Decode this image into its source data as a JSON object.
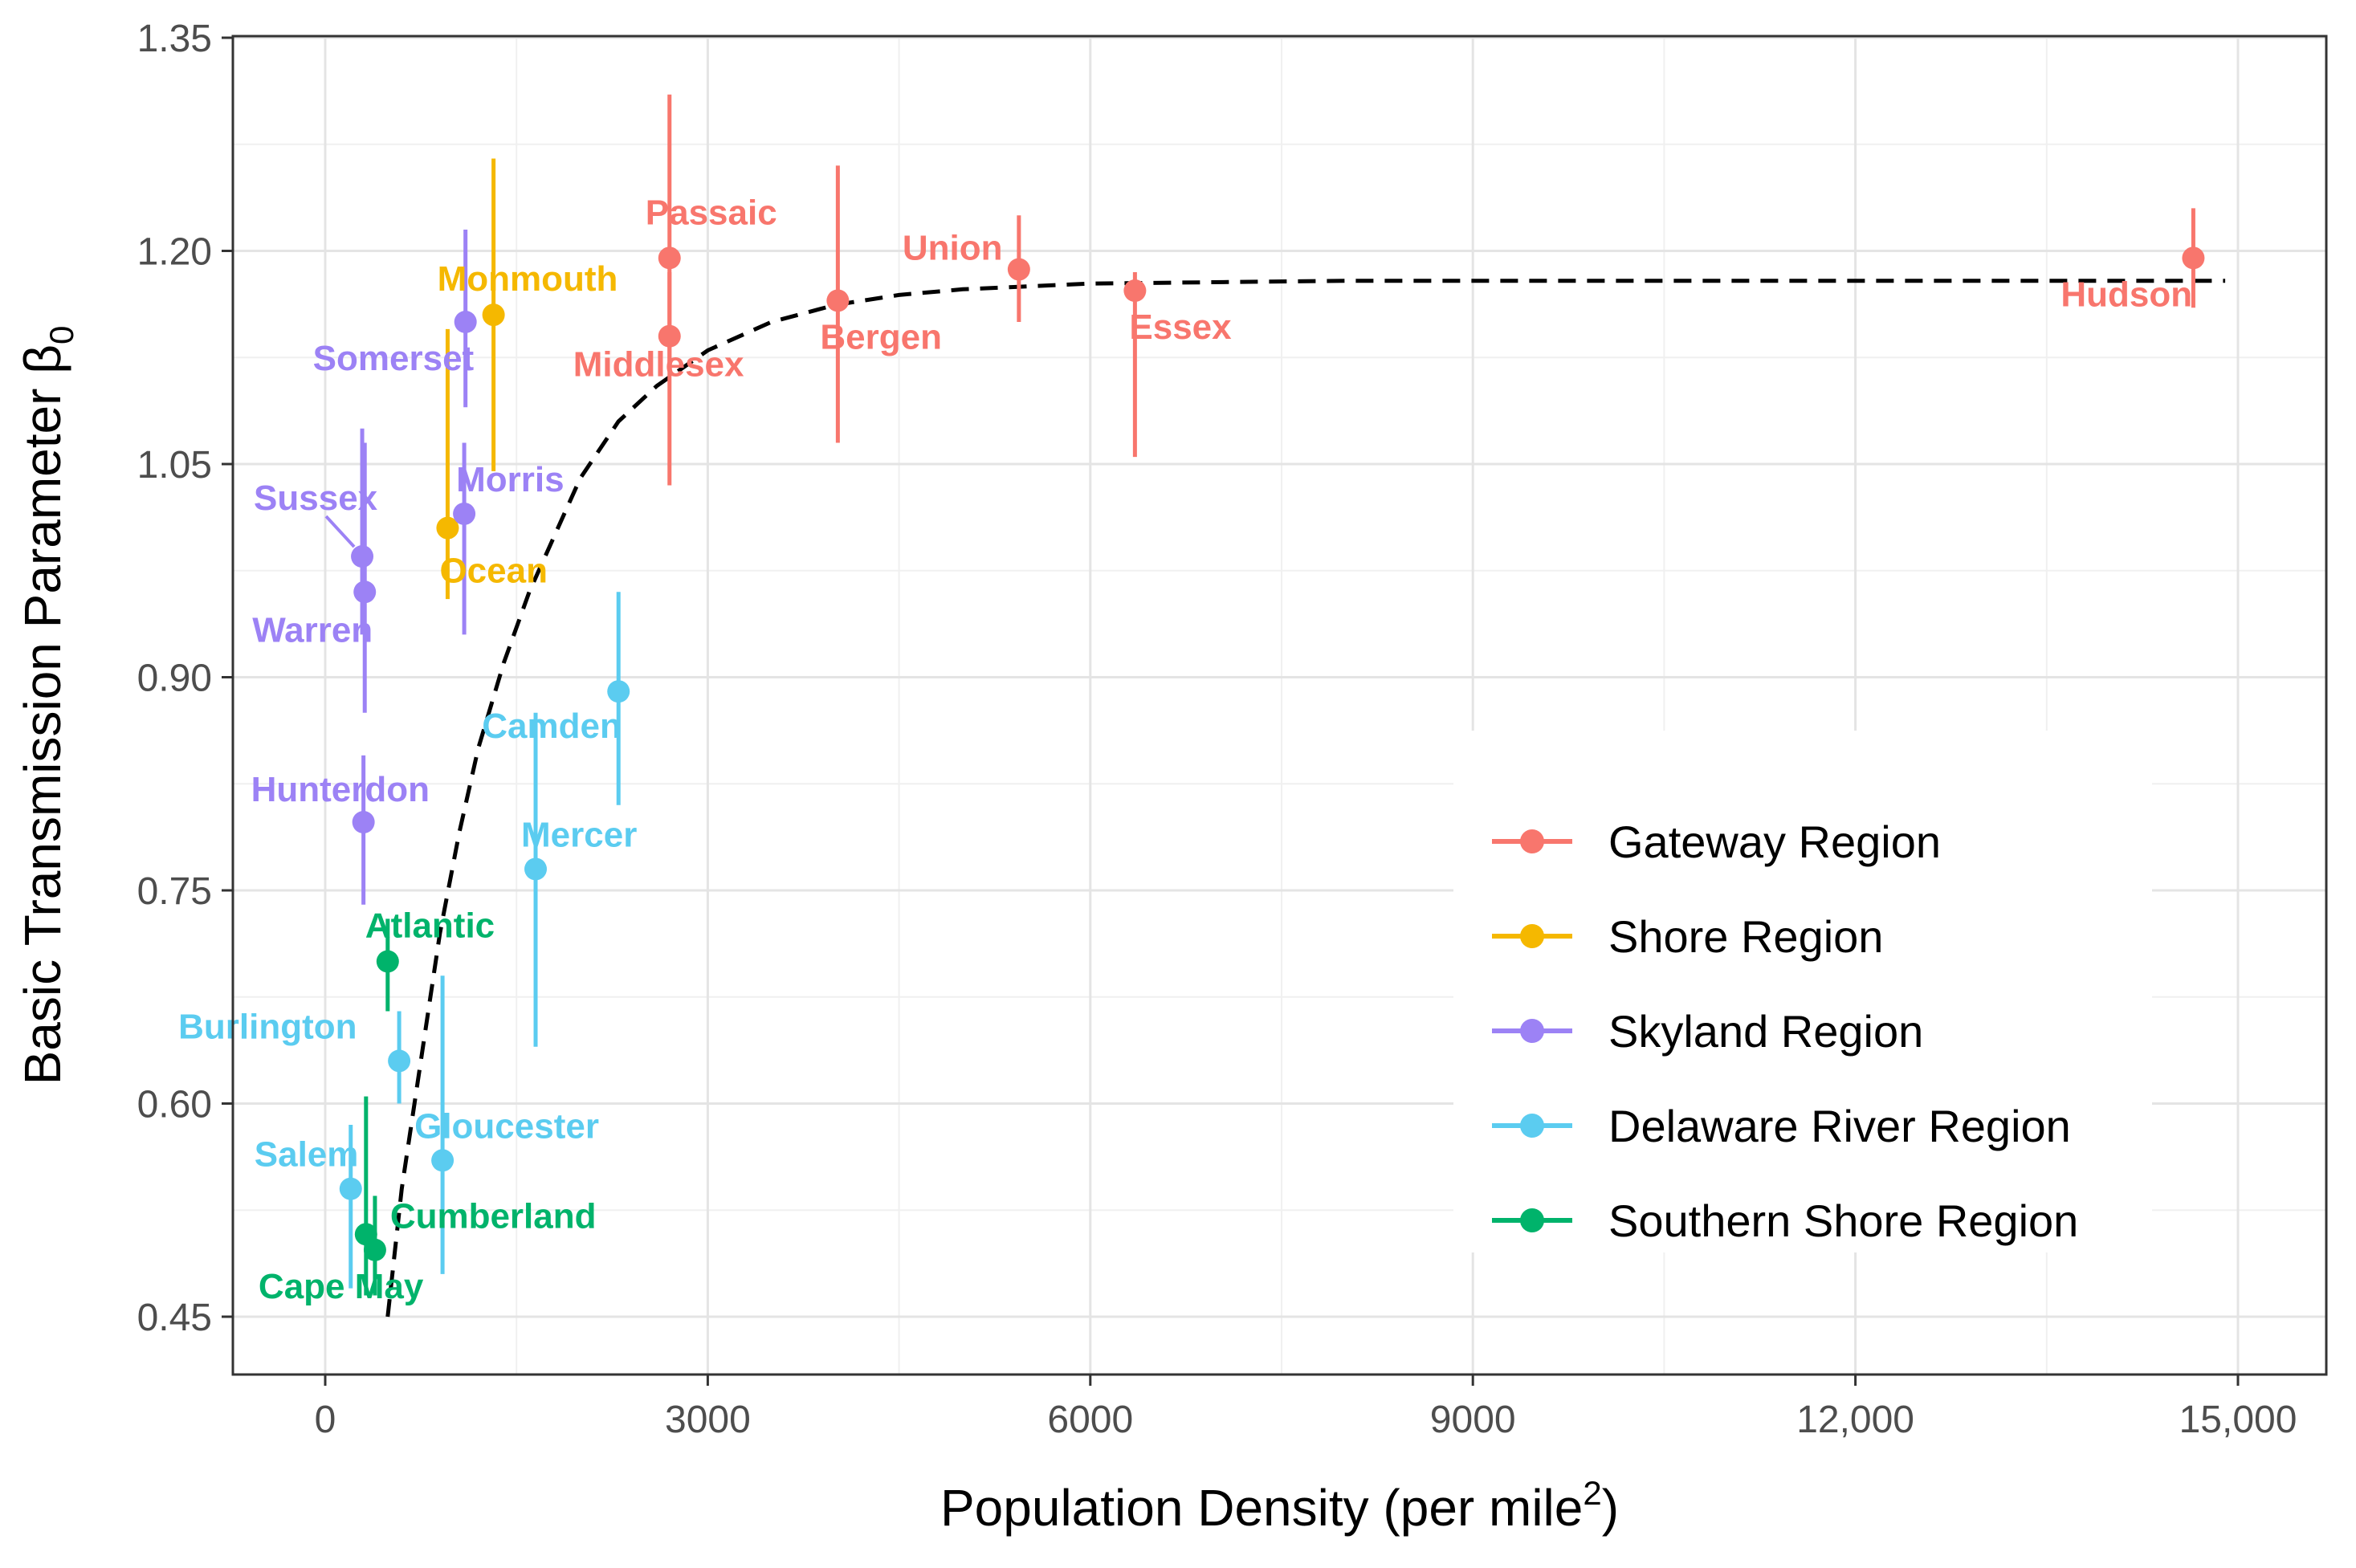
{
  "chart_data": {
    "type": "scatter",
    "xlabel": "Population Density (per mile",
    "xlabel_superscript": "2",
    "xlabel_close": ")",
    "ylabel": "Basic Transmission Parameter β",
    "ylabel_subscript": "0",
    "xlim": [
      -700,
      15700
    ],
    "ylim": [
      0.408,
      1.35
    ],
    "x_ticks": [
      0,
      3000,
      6000,
      9000,
      12000,
      15000
    ],
    "x_tick_labels": [
      "0",
      "3000",
      "6000",
      "9000",
      "12,000",
      "15,000"
    ],
    "y_ticks": [
      0.45,
      0.6,
      0.75,
      0.9,
      1.05,
      1.2,
      1.35
    ],
    "y_tick_labels": [
      "0.45",
      "0.60",
      "0.75",
      "0.90",
      "1.05",
      "1.20",
      "1.35"
    ],
    "grid": true,
    "legend_position": "bottom-right",
    "series": [
      {
        "name": "Gateway Region",
        "color": "#F8766D",
        "points": [
          {
            "label": "Passaic",
            "x": 2700,
            "y": 1.195,
            "ylo": 1.12,
            "yhi": 1.31
          },
          {
            "label": "Middlesex",
            "x": 2700,
            "y": 1.14,
            "ylo": 1.035,
            "yhi": 1.185
          },
          {
            "label": "Bergen",
            "x": 4020,
            "y": 1.165,
            "ylo": 1.065,
            "yhi": 1.26
          },
          {
            "label": "Union",
            "x": 5440,
            "y": 1.187,
            "ylo": 1.15,
            "yhi": 1.225
          },
          {
            "label": "Essex",
            "x": 6350,
            "y": 1.172,
            "ylo": 1.055,
            "yhi": 1.185
          },
          {
            "label": "Hudson",
            "x": 14650,
            "y": 1.195,
            "ylo": 1.16,
            "yhi": 1.23
          }
        ]
      },
      {
        "name": "Shore Region",
        "color": "#F5B800",
        "points": [
          {
            "label": "Monmouth",
            "x": 1320,
            "y": 1.155,
            "ylo": 1.045,
            "yhi": 1.265
          },
          {
            "label": "Ocean",
            "x": 960,
            "y": 1.005,
            "ylo": 0.955,
            "yhi": 1.145
          }
        ]
      },
      {
        "name": "Skyland Region",
        "color": "#9C82F5",
        "points": [
          {
            "label": "Somerset",
            "x": 1100,
            "y": 1.15,
            "ylo": 1.09,
            "yhi": 1.215
          },
          {
            "label": "Morris",
            "x": 1090,
            "y": 1.015,
            "ylo": 0.93,
            "yhi": 1.065
          },
          {
            "label": "Sussex",
            "x": 290,
            "y": 0.985,
            "ylo": 0.93,
            "yhi": 1.075
          },
          {
            "label": "Warren",
            "x": 310,
            "y": 0.96,
            "ylo": 0.875,
            "yhi": 1.065
          },
          {
            "label": "Hunterdon",
            "x": 300,
            "y": 0.798,
            "ylo": 0.74,
            "yhi": 0.845
          }
        ]
      },
      {
        "name": "Delaware River Region",
        "color": "#5BCCF0",
        "points": [
          {
            "label": "Camden",
            "x": 2300,
            "y": 0.89,
            "ylo": 0.81,
            "yhi": 0.96
          },
          {
            "label": "Mercer",
            "x": 1650,
            "y": 0.765,
            "ylo": 0.64,
            "yhi": 0.875
          },
          {
            "label": "Burlington",
            "x": 580,
            "y": 0.63,
            "ylo": 0.6,
            "yhi": 0.665
          },
          {
            "label": "Gloucester",
            "x": 920,
            "y": 0.56,
            "ylo": 0.48,
            "yhi": 0.69
          },
          {
            "label": "Salem",
            "x": 200,
            "y": 0.54,
            "ylo": 0.47,
            "yhi": 0.585
          }
        ]
      },
      {
        "name": "Southern Shore Region",
        "color": "#00B36B",
        "points": [
          {
            "label": "Atlantic",
            "x": 490,
            "y": 0.7,
            "ylo": 0.665,
            "yhi": 0.73
          },
          {
            "label": "Cumberland",
            "x": 320,
            "y": 0.508,
            "ylo": 0.465,
            "yhi": 0.605
          },
          {
            "label": "Cape May",
            "x": 390,
            "y": 0.497,
            "ylo": 0.465,
            "yhi": 0.535
          }
        ]
      }
    ],
    "fit_curve": {
      "style": "dashed",
      "color": "#000000",
      "x_start": 490,
      "x_end": 14900,
      "points": [
        {
          "x": 490,
          "y": 0.45
        },
        {
          "x": 600,
          "y": 0.54
        },
        {
          "x": 750,
          "y": 0.63
        },
        {
          "x": 900,
          "y": 0.72
        },
        {
          "x": 1050,
          "y": 0.79
        },
        {
          "x": 1200,
          "y": 0.85
        },
        {
          "x": 1400,
          "y": 0.91
        },
        {
          "x": 1600,
          "y": 0.96
        },
        {
          "x": 1800,
          "y": 1.0
        },
        {
          "x": 2000,
          "y": 1.04
        },
        {
          "x": 2300,
          "y": 1.08
        },
        {
          "x": 2600,
          "y": 1.105
        },
        {
          "x": 3000,
          "y": 1.13
        },
        {
          "x": 3500,
          "y": 1.15
        },
        {
          "x": 4000,
          "y": 1.162
        },
        {
          "x": 4500,
          "y": 1.169
        },
        {
          "x": 5000,
          "y": 1.173
        },
        {
          "x": 6000,
          "y": 1.177
        },
        {
          "x": 8000,
          "y": 1.179
        },
        {
          "x": 11000,
          "y": 1.179
        },
        {
          "x": 14900,
          "y": 1.179
        }
      ]
    }
  }
}
